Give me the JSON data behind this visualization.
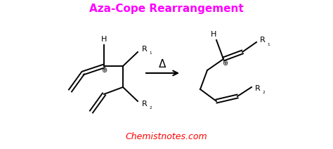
{
  "title": "Aza-Cope Rearrangement",
  "title_color": "#FF00FF",
  "title_fontsize": 11,
  "watermark": "Chemistnotes.com",
  "watermark_color": "#FF0000",
  "watermark_fontsize": 9,
  "bg_color": "#FFFFFF",
  "line_color": "#000000",
  "arrow_label": "Δ",
  "lw": 1.4
}
